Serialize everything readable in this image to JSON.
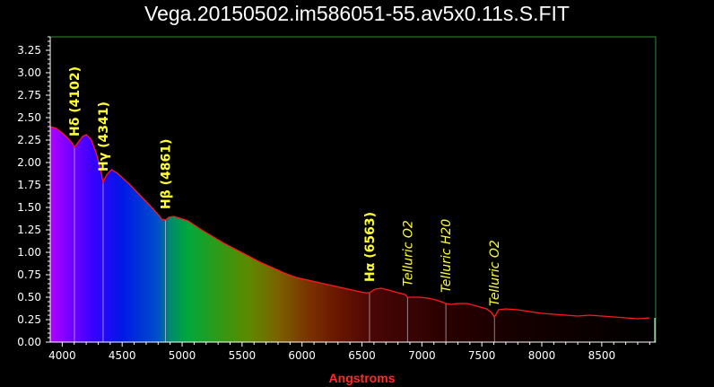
{
  "title": "Vega.20150502.im586051-55.av5x0.11s.S.FIT",
  "chart_data": {
    "type": "line",
    "title": "Vega.20150502.im586051-55.av5x0.11s.S.FIT",
    "xlabel": "Angstroms",
    "ylabel": "",
    "xlim": [
      3900,
      8950
    ],
    "ylim": [
      0,
      3.4
    ],
    "x_ticks": [
      4000,
      4500,
      5000,
      5500,
      6000,
      6500,
      7000,
      7500,
      8000,
      8500
    ],
    "y_ticks": [
      "0.00",
      "0.25",
      "0.50",
      "0.75",
      "1.00",
      "1.25",
      "1.50",
      "1.75",
      "2.00",
      "2.25",
      "2.50",
      "2.75",
      "3.00",
      "3.25"
    ],
    "grid": false,
    "legend": "none",
    "series": [
      {
        "color": "#ff1a1a",
        "x": [
          3900,
          3950,
          4000,
          4040,
          4080,
          4102,
          4130,
          4170,
          4200,
          4240,
          4280,
          4320,
          4341,
          4370,
          4410,
          4460,
          4510,
          4560,
          4610,
          4660,
          4710,
          4760,
          4800,
          4830,
          4861,
          4890,
          4930,
          4980,
          5050,
          5150,
          5250,
          5350,
          5450,
          5550,
          5650,
          5750,
          5850,
          5950,
          6050,
          6150,
          6250,
          6350,
          6450,
          6520,
          6563,
          6610,
          6660,
          6720,
          6800,
          6860,
          6880,
          6920,
          6980,
          7050,
          7120,
          7180,
          7200,
          7240,
          7300,
          7380,
          7460,
          7540,
          7580,
          7605,
          7640,
          7700,
          7800,
          7900,
          8000,
          8100,
          8200,
          8300,
          8400,
          8500,
          8600,
          8700,
          8800,
          8900
        ],
        "y": [
          2.4,
          2.38,
          2.33,
          2.28,
          2.22,
          2.17,
          2.22,
          2.29,
          2.31,
          2.26,
          2.12,
          1.93,
          1.78,
          1.86,
          1.92,
          1.88,
          1.82,
          1.76,
          1.69,
          1.62,
          1.55,
          1.48,
          1.42,
          1.37,
          1.36,
          1.39,
          1.4,
          1.38,
          1.35,
          1.26,
          1.18,
          1.1,
          1.03,
          0.96,
          0.89,
          0.83,
          0.77,
          0.72,
          0.69,
          0.66,
          0.63,
          0.6,
          0.57,
          0.55,
          0.55,
          0.59,
          0.6,
          0.58,
          0.55,
          0.53,
          0.5,
          0.5,
          0.5,
          0.49,
          0.47,
          0.44,
          0.43,
          0.42,
          0.43,
          0.43,
          0.4,
          0.37,
          0.33,
          0.28,
          0.36,
          0.37,
          0.36,
          0.34,
          0.32,
          0.31,
          0.3,
          0.29,
          0.3,
          0.29,
          0.28,
          0.27,
          0.26,
          0.27
        ]
      }
    ],
    "annotations": [
      {
        "text": "Hδ (4102)",
        "x": 4102,
        "y": 2.17,
        "style": "bold"
      },
      {
        "text": "Hγ (4341)",
        "x": 4341,
        "y": 1.78,
        "style": "bold"
      },
      {
        "text": "Hβ (4861)",
        "x": 4861,
        "y": 1.36,
        "style": "bold"
      },
      {
        "text": "Hα (6563)",
        "x": 6563,
        "y": 0.55,
        "style": "bold"
      },
      {
        "text": "Telluric O2",
        "x": 6880,
        "y": 0.5,
        "style": "italic"
      },
      {
        "text": "Telluric H20",
        "x": 7200,
        "y": 0.43,
        "style": "italic"
      },
      {
        "text": "Telluric O2",
        "x": 7605,
        "y": 0.28,
        "style": "italic"
      }
    ],
    "colors": {
      "line": "#ff1a1a",
      "axis": "#ffffff",
      "frame": "#2e8b2e",
      "xlabel": "#ff2a2a",
      "annotation": "#ffff33"
    }
  }
}
